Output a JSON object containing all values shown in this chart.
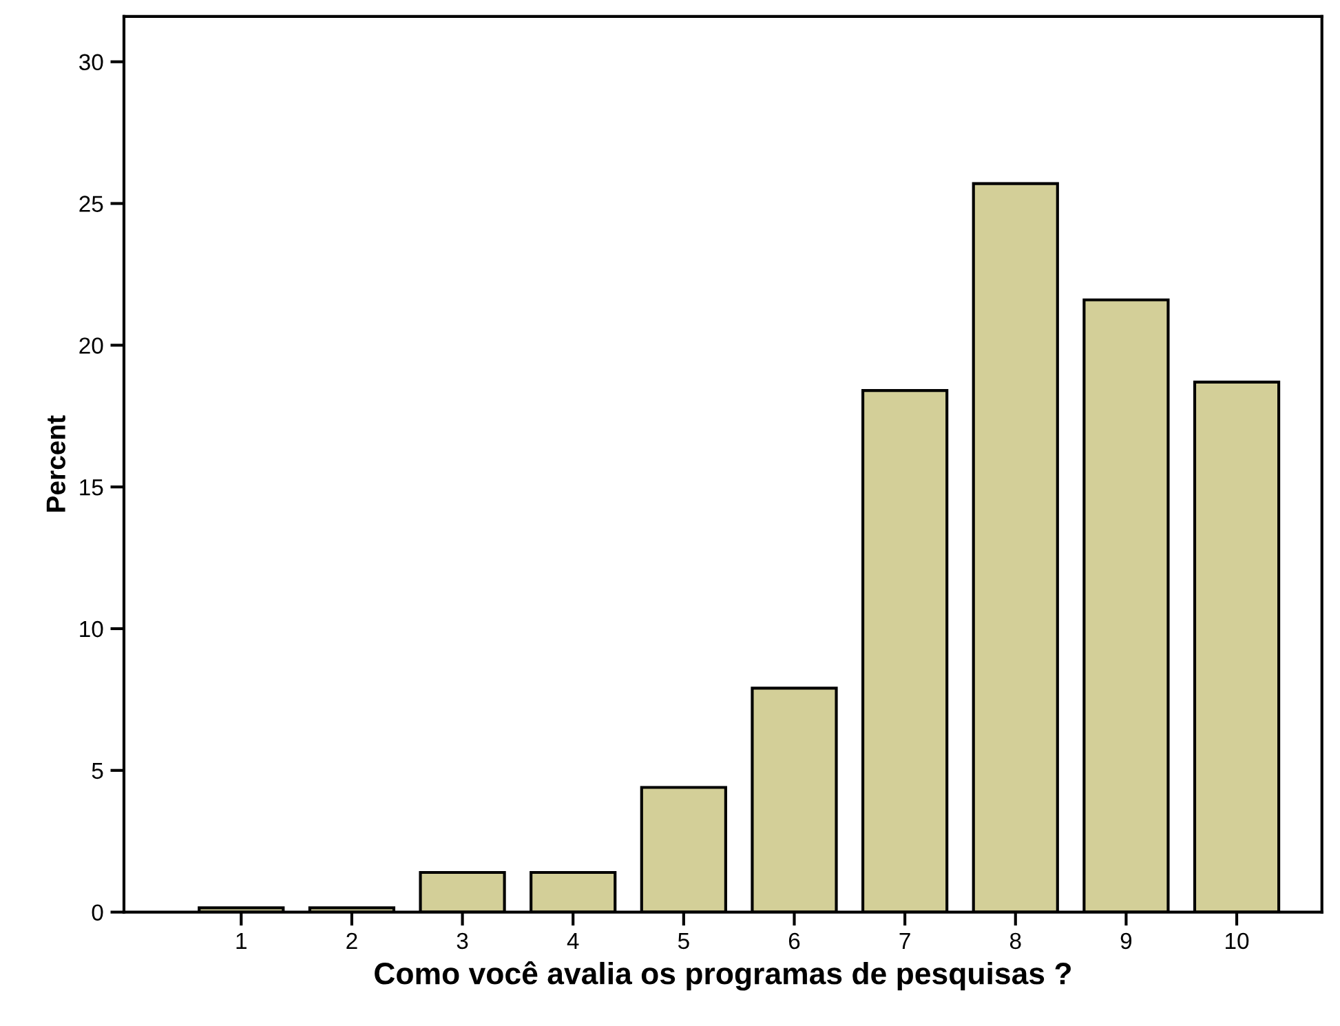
{
  "chart_data": {
    "type": "bar",
    "xlabel": "Como você avalia os programas de pesquisas ?",
    "ylabel": "Percent",
    "categories": [
      "1",
      "2",
      "3",
      "4",
      "5",
      "6",
      "7",
      "8",
      "9",
      "10"
    ],
    "values": [
      0.15,
      0.15,
      1.4,
      1.4,
      4.4,
      7.9,
      18.4,
      25.7,
      21.6,
      18.7
    ],
    "color": "#d3cf98",
    "ylim": [
      0,
      31.6
    ],
    "yticks": [
      0,
      5,
      10,
      15,
      20,
      25,
      30
    ],
    "grid": false,
    "legend": false
  }
}
